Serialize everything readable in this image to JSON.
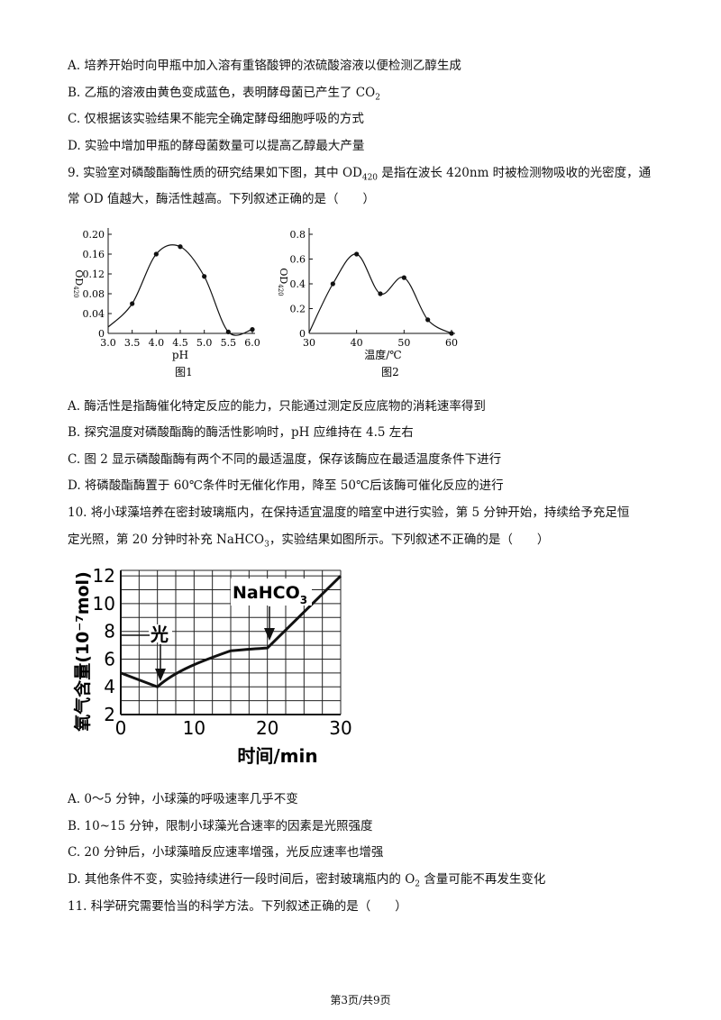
{
  "q8": {
    "A": "A. 培养开始时向甲瓶中加入溶有重铬酸钾的浓硫酸溶液以便检测乙醇生成",
    "B_pre": "B. 乙瓶的溶液由黄色变成蓝色，表明酵母菌已产生了 CO",
    "B_sub": "2",
    "C": "C. 仅根据该实验结果不能完全确定酵母细胞呼吸的方式",
    "D": "D. 实验中增加甲瓶的酵母菌数量可以提高乙醇最大产量"
  },
  "q9": {
    "stem1_pre": "9. 实验室对磷酸酯酶性质的研究结果如下图，其中 OD",
    "stem1_sub": "420",
    "stem1_post": " 是指在波长 420nm 时被检测物吸收的光密度，通",
    "stem2": "常 OD 值越大，酶活性越高。下列叙述正确的是（　　）",
    "A": "A. 酶活性是指酶催化特定反应的能力，只能通过测定反应底物的消耗速率得到",
    "B": "B. 探究温度对磷酸酯酶的酶活性影响时，pH 应维持在 4.5 左右",
    "C": "C. 图 2 显示磷酸酯酶有两个不同的最适温度，保存该酶应在最适温度条件下进行",
    "D": "D. 将磷酸酯酶置于 60℃条件时无催化作用，降至 50℃后该酶可催化反应的进行"
  },
  "q10": {
    "stem1": "10. 将小球藻培养在密封玻璃瓶内，在保持适宜温度的暗室中进行实验，第 5 分钟开始，持续给予充足恒",
    "stem2_pre": "定光照，第 20 分钟时补充 NaHCO",
    "stem2_sub": "3",
    "stem2_post": "，实验结果如图所示。下列叙述不正确的是（　　）",
    "A": "A. 0～5 分钟，小球藻的呼吸速率几乎不变",
    "B": "B. 10~15 分钟，限制小球藻光合速率的因素是光照强度",
    "C": "C. 20 分钟后，小球藻暗反应速率增强，光反应速率也增强",
    "D_pre": "D. 其他条件不变，实验持续进行一段时间后，密封玻璃瓶内的 O",
    "D_sub": "2",
    "D_post": " 含量可能不再发生变化"
  },
  "q11": {
    "stem": "11. 科学研究需要恰当的科学方法。下列叙述正确的是（　　）"
  },
  "footer": "第3页/共9页",
  "chart_data": [
    {
      "type": "line",
      "x": [
        3.5,
        4.0,
        4.5,
        5.0,
        5.5,
        6.0
      ],
      "series": [
        {
          "values": [
            0.06,
            0.16,
            0.175,
            0.115,
            0.003,
            0.008
          ]
        }
      ],
      "xticks": [
        "3.0",
        "3.5",
        "4.0",
        "4.5",
        "5.0",
        "5.5",
        "6.0"
      ],
      "yticks": [
        "0",
        "0.04",
        "0.08",
        "0.12",
        "0.16",
        "0.20"
      ],
      "xlabel": "pH",
      "ylabel": "OD",
      "ylabel_sub": "420",
      "caption": "图1",
      "xlim": [
        3.0,
        6.0
      ],
      "ylim": [
        0,
        0.2
      ]
    },
    {
      "type": "line",
      "x": [
        35,
        40,
        45,
        50,
        55,
        60
      ],
      "series": [
        {
          "values": [
            0.4,
            0.64,
            0.32,
            0.45,
            0.11,
            0.0
          ]
        }
      ],
      "xticks": [
        "30",
        "40",
        "50",
        "60"
      ],
      "yticks": [
        "0",
        "0.2",
        "0.4",
        "0.6",
        "0.8"
      ],
      "xlabel": "温度/℃",
      "ylabel": "OD",
      "ylabel_sub": "420",
      "caption": "图2",
      "xlim": [
        30,
        60
      ],
      "ylim": [
        0,
        0.8
      ]
    },
    {
      "type": "line",
      "x": [
        0,
        5,
        10,
        15,
        20,
        30
      ],
      "series": [
        {
          "values": [
            5,
            4,
            5.9,
            6.6,
            6.8,
            12
          ]
        }
      ],
      "xticks": [
        "0",
        "10",
        "20",
        "30"
      ],
      "yticks": [
        "2",
        "4",
        "6",
        "8",
        "10",
        "12"
      ],
      "xlabel": "时间/min",
      "ylabel": "氧气含量(10⁻⁷mol)",
      "annotations": [
        "光",
        "NaHCO",
        "3"
      ],
      "xlim": [
        0,
        30
      ],
      "ylim": [
        2,
        12.4
      ],
      "grid": true
    }
  ]
}
